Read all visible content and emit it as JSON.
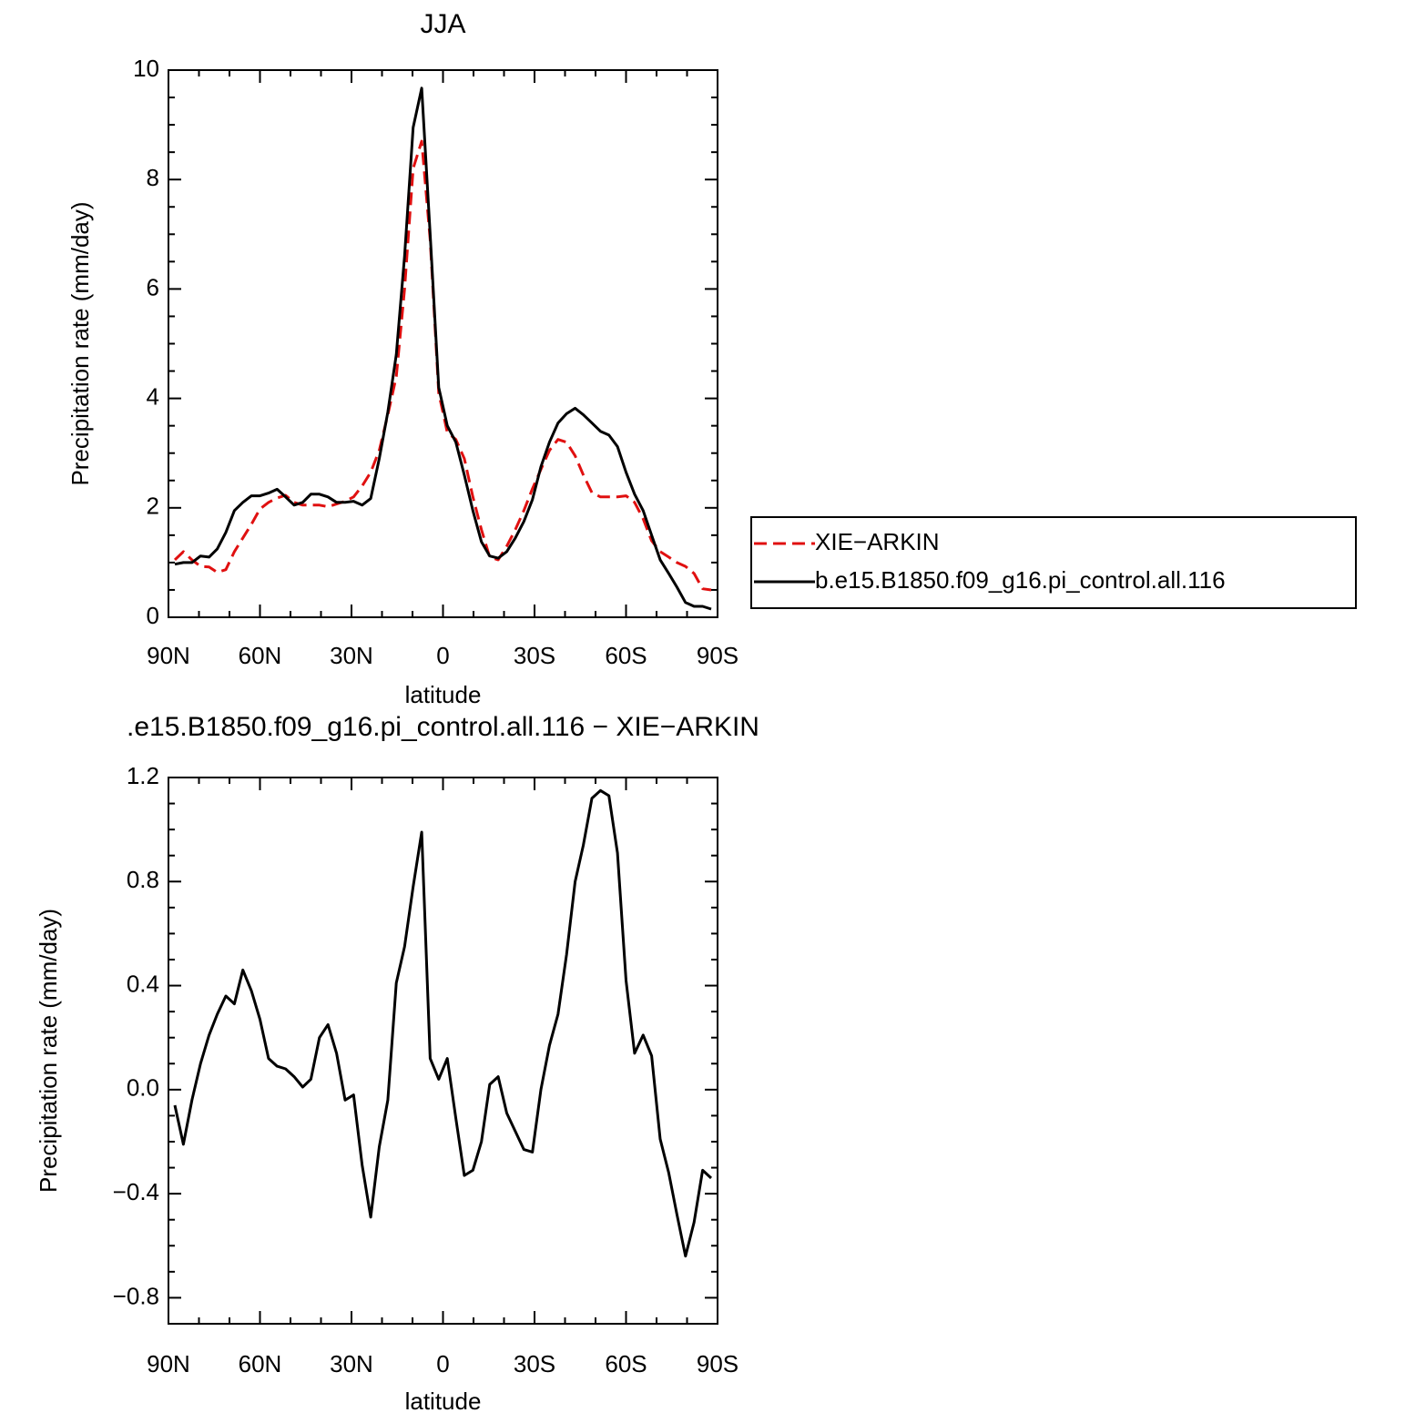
{
  "chart_data": [
    {
      "type": "line",
      "title": "JJA",
      "xlabel": "latitude",
      "ylabel": "Precipitation rate (mm/day)",
      "x": [
        87.9,
        85.1,
        82.3,
        79.5,
        76.7,
        74.0,
        71.2,
        68.4,
        65.6,
        62.8,
        60.0,
        57.2,
        54.4,
        51.6,
        48.8,
        46.0,
        43.3,
        40.5,
        37.7,
        34.9,
        32.1,
        29.3,
        26.5,
        23.7,
        20.9,
        18.1,
        15.3,
        12.6,
        9.8,
        7.0,
        4.2,
        1.4,
        -1.4,
        -4.2,
        -7.0,
        -9.8,
        -12.6,
        -15.3,
        -18.1,
        -20.9,
        -23.7,
        -26.5,
        -29.3,
        -32.1,
        -34.9,
        -37.7,
        -40.5,
        -43.3,
        -46.0,
        -48.8,
        -51.6,
        -54.4,
        -57.2,
        -60.0,
        -62.8,
        -65.6,
        -68.4,
        -71.2,
        -74.0,
        -76.7,
        -79.5,
        -82.3,
        -85.1,
        -87.9
      ],
      "xlim": [
        90,
        -90
      ],
      "xticks": [
        {
          "value": 90,
          "label": "90N"
        },
        {
          "value": 60,
          "label": "60N"
        },
        {
          "value": 30,
          "label": "30N"
        },
        0,
        {
          "value": -30,
          "label": "30S"
        },
        {
          "value": -60,
          "label": "60S"
        },
        {
          "value": -90,
          "label": "90S"
        }
      ],
      "ylim": [
        0,
        10
      ],
      "yticks": [
        0,
        2,
        4,
        6,
        8,
        10
      ],
      "legend": "outside-right",
      "series": [
        {
          "name": "XIE−ARKIN",
          "color": "#e01010",
          "linestyle": "dashed",
          "values": [
            1.05,
            1.2,
            1.05,
            0.93,
            0.92,
            0.82,
            0.87,
            1.2,
            1.45,
            1.7,
            1.98,
            2.1,
            2.18,
            2.23,
            2.1,
            2.05,
            2.05,
            2.05,
            2.02,
            2.07,
            2.12,
            2.2,
            2.4,
            2.65,
            3.05,
            3.7,
            4.4,
            6.0,
            8.2,
            8.7,
            6.9,
            4.1,
            3.38,
            3.25,
            2.9,
            2.2,
            1.6,
            1.1,
            1.05,
            1.3,
            1.6,
            1.95,
            2.35,
            2.7,
            3.05,
            3.25,
            3.2,
            2.95,
            2.6,
            2.28,
            2.2,
            2.2,
            2.2,
            2.22,
            2.1,
            1.8,
            1.4,
            1.2,
            1.1,
            1.0,
            0.93,
            0.8,
            0.52,
            0.5
          ]
        },
        {
          "name": "b.e15.B1850.f09_g16.pi_control.all.116",
          "color": "#000000",
          "linestyle": "solid",
          "values": [
            0.97,
            1.0,
            1.0,
            1.12,
            1.1,
            1.25,
            1.55,
            1.95,
            2.1,
            2.22,
            2.22,
            2.27,
            2.34,
            2.2,
            2.05,
            2.1,
            2.25,
            2.25,
            2.2,
            2.1,
            2.1,
            2.12,
            2.05,
            2.17,
            2.9,
            3.75,
            4.8,
            6.6,
            8.95,
            9.67,
            7.0,
            4.2,
            3.5,
            3.2,
            2.6,
            1.95,
            1.38,
            1.12,
            1.08,
            1.2,
            1.45,
            1.75,
            2.15,
            2.75,
            3.2,
            3.55,
            3.72,
            3.82,
            3.7,
            3.55,
            3.4,
            3.33,
            3.12,
            2.65,
            2.25,
            1.95,
            1.5,
            1.05,
            0.8,
            0.55,
            0.27,
            0.2,
            0.2,
            0.15
          ]
        }
      ]
    },
    {
      "type": "line",
      "title": ".e15.B1850.f09_g16.pi_control.all.116 − XIE−ARKIN",
      "xlabel": "latitude",
      "ylabel": "Precipitation rate (mm/day)",
      "x": [
        87.9,
        85.1,
        82.3,
        79.5,
        76.7,
        74.0,
        71.2,
        68.4,
        65.6,
        62.8,
        60.0,
        57.2,
        54.4,
        51.6,
        48.8,
        46.0,
        43.3,
        40.5,
        37.7,
        34.9,
        32.1,
        29.3,
        26.5,
        23.7,
        20.9,
        18.1,
        15.3,
        12.6,
        9.8,
        7.0,
        4.2,
        1.4,
        -1.4,
        -4.2,
        -7.0,
        -9.8,
        -12.6,
        -15.3,
        -18.1,
        -20.9,
        -23.7,
        -26.5,
        -29.3,
        -32.1,
        -34.9,
        -37.7,
        -40.5,
        -43.3,
        -46.0,
        -48.8,
        -51.6,
        -54.4,
        -57.2,
        -60.0,
        -62.8,
        -65.6,
        -68.4,
        -71.2,
        -74.0,
        -76.7,
        -79.5,
        -82.3,
        -85.1,
        -87.9
      ],
      "xlim": [
        90,
        -90
      ],
      "xticks": [
        {
          "value": 90,
          "label": "90N"
        },
        {
          "value": 60,
          "label": "60N"
        },
        {
          "value": 30,
          "label": "30N"
        },
        0,
        {
          "value": -30,
          "label": "30S"
        },
        {
          "value": -60,
          "label": "60S"
        },
        {
          "value": -90,
          "label": "90S"
        }
      ],
      "ylim": [
        -0.9,
        1.2
      ],
      "yticks": [
        {
          "value": -0.8,
          "label": "−0.8"
        },
        {
          "value": -0.4,
          "label": "−0.4"
        },
        {
          "value": 0,
          "label": "0.0"
        },
        0.4,
        0.8,
        1.2
      ],
      "series": [
        {
          "color": "#000000",
          "linestyle": "solid",
          "values": [
            -0.06,
            -0.21,
            -0.04,
            0.1,
            0.21,
            0.29,
            0.36,
            0.33,
            0.46,
            0.38,
            0.27,
            0.12,
            0.09,
            0.08,
            0.05,
            0.01,
            0.04,
            0.2,
            0.25,
            0.14,
            -0.04,
            -0.02,
            -0.29,
            -0.49,
            -0.22,
            -0.04,
            0.41,
            0.55,
            0.78,
            0.99,
            0.12,
            0.04,
            0.12,
            -0.11,
            -0.33,
            -0.31,
            -0.2,
            0.02,
            0.05,
            -0.09,
            -0.16,
            -0.23,
            -0.24,
            0.0,
            0.17,
            0.29,
            0.52,
            0.8,
            0.94,
            1.12,
            1.15,
            1.13,
            0.91,
            0.42,
            0.14,
            0.21,
            0.13,
            -0.19,
            -0.32,
            -0.48,
            -0.64,
            -0.51,
            -0.31,
            -0.34
          ]
        }
      ]
    }
  ]
}
